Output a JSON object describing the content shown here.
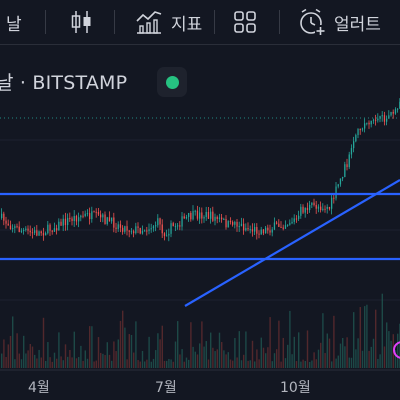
{
  "toolbar": {
    "timeframe_label": "날",
    "indicators_label": "지표",
    "alert_label": "얼러트"
  },
  "symbol": {
    "title": "날 · BITSTAMP"
  },
  "colors": {
    "background": "#131722",
    "up_candle": "#26a69a",
    "down_candle": "#ef5350",
    "trendline": "#2962ff",
    "status_green": "#26c281"
  },
  "chart_data": {
    "type": "candlestick",
    "x_tick_labels": [
      "4월",
      "7월",
      "10월"
    ],
    "has_volume_pane": true,
    "drawings": [
      "horizontal-line-upper",
      "horizontal-line-lower",
      "ascending-trendline"
    ]
  }
}
